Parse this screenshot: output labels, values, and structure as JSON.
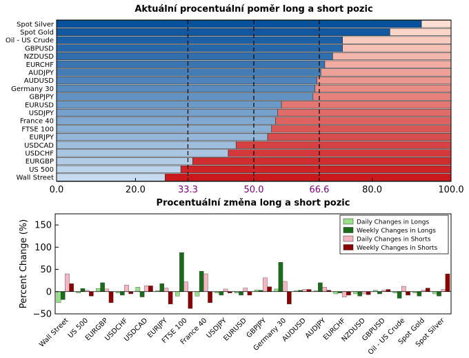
{
  "chart_data": [
    {
      "type": "bar",
      "orientation": "horizontal",
      "stacked": true,
      "title": "Aktuální procentuální poměr long a short pozic",
      "categories": [
        "Spot Silver",
        "Spot Gold",
        "Oil - US Crude",
        "GBPUSD",
        "NZDUSD",
        "EURCHF",
        "AUDJPY",
        "AUDUSD",
        "Germany 30",
        "GBPJPY",
        "EURUSD",
        "USDJPY",
        "France 40",
        "FTSE 100",
        "EURJPY",
        "USDCAD",
        "USDCHF",
        "EURGBP",
        "US 500",
        "Wall Street"
      ],
      "series": [
        {
          "values": [
            92.5,
            84.5,
            72.5,
            72.5,
            70.0,
            68.0,
            67.0,
            66.0,
            65.5,
            65.0,
            57.0,
            56.0,
            55.5,
            54.5,
            53.5,
            45.5,
            43.5,
            34.5,
            31.5,
            27.5
          ]
        },
        {
          "values": [
            7.5,
            15.5,
            27.5,
            27.5,
            30.0,
            32.0,
            33.0,
            34.0,
            34.5,
            35.0,
            43.0,
            44.0,
            44.5,
            45.5,
            46.5,
            54.5,
            56.5,
            65.5,
            68.5,
            72.5
          ]
        }
      ],
      "xlim": [
        0,
        100
      ],
      "xticks": [
        "0.0",
        "20.0",
        "33.3",
        "50.0",
        "66.6",
        "80.0",
        "100.0"
      ],
      "reference_lines": [
        33.3,
        50.0,
        66.6
      ],
      "colors": {
        "long_dark": "#08519c",
        "long_light": "#c6dbef",
        "short_light": "#fee0d2",
        "short_dark": "#cb181d",
        "ref_tick": "#800080"
      }
    },
    {
      "type": "bar",
      "title": "Procentuální změna long a short pozic",
      "ylabel": "Percent Change (%)",
      "ylim": [
        -50,
        175
      ],
      "yticks": [
        "−50",
        "0",
        "50",
        "100",
        "150"
      ],
      "legend_position": "top-right",
      "categories": [
        "Wall Street",
        "US 500",
        "EURGBP",
        "USDCHF",
        "USDCAD",
        "EURJPY",
        "FTSE 100",
        "France 40",
        "USDJPY",
        "EURUSD",
        "GBPJPY",
        "Germany 30",
        "AUDUSD",
        "AUDJPY",
        "EURCHF",
        "NZDUSD",
        "GBPUSD",
        "Oil - US Crude",
        "Spot Gold",
        "Spot Silver"
      ],
      "series": [
        {
          "name": "Daily Changes in Longs",
          "color": "#98df8a",
          "values": [
            -25,
            -3,
            7,
            -3,
            10,
            2,
            -10,
            -10,
            -3,
            -3,
            4,
            6,
            2,
            2,
            -5,
            -5,
            3,
            -3,
            -3,
            -5
          ]
        },
        {
          "name": "Weekly Changes in Longs",
          "color": "#1a6b1a",
          "values": [
            -18,
            7,
            20,
            -8,
            -12,
            18,
            88,
            46,
            -8,
            -8,
            3,
            66,
            3,
            20,
            -3,
            -10,
            -5,
            -15,
            -10,
            -10
          ]
        },
        {
          "name": "Daily Changes in Shorts",
          "color": "#f4b6c2",
          "values": [
            40,
            3,
            6,
            15,
            13,
            8,
            22,
            40,
            6,
            8,
            31,
            23,
            5,
            10,
            -12,
            -5,
            3,
            12,
            3,
            5
          ]
        },
        {
          "name": "Weekly Changes in Shorts",
          "color": "#8b0000",
          "values": [
            18,
            -10,
            -25,
            -5,
            13,
            -28,
            -38,
            -25,
            -3,
            -8,
            11,
            -28,
            5,
            3,
            -8,
            -7,
            5,
            -8,
            8,
            40
          ]
        }
      ]
    }
  ]
}
